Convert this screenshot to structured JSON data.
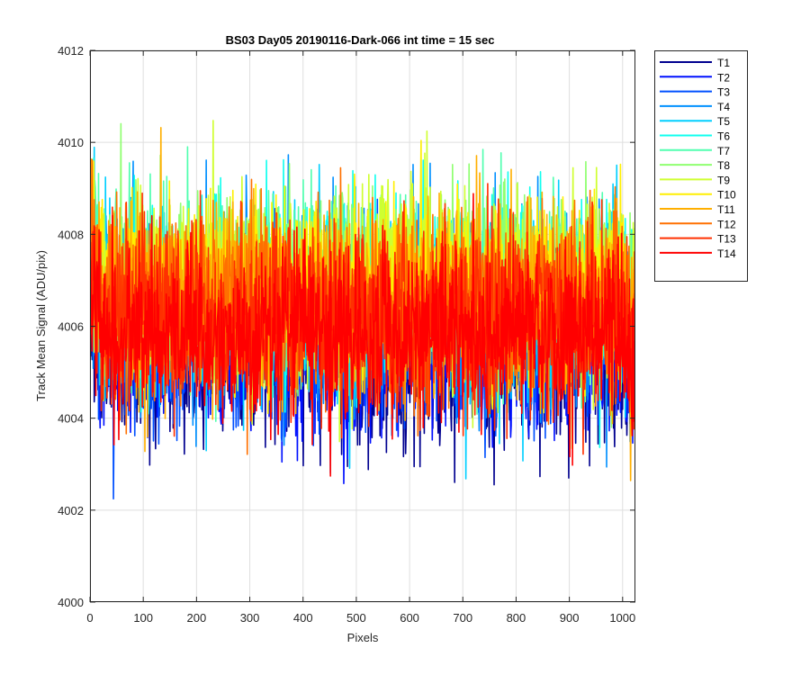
{
  "chart_data": {
    "type": "line",
    "title": "BS03 Day05 20190116-Dark-066 int time = 15 sec",
    "xlabel": "Pixels",
    "ylabel": "Track Mean Signal (ADU/pix)",
    "xlim": [
      0,
      1024
    ],
    "ylim": [
      4000,
      4012
    ],
    "xticks": [
      0,
      100,
      200,
      300,
      400,
      500,
      600,
      700,
      800,
      900,
      1000
    ],
    "yticks": [
      4000,
      4002,
      4004,
      4006,
      4008,
      4010,
      4012
    ],
    "grid": true,
    "legend_position": "outside-right-top",
    "series": [
      {
        "name": "T1",
        "color": "#00008f",
        "mean": 4005.4,
        "noise": 0.95
      },
      {
        "name": "T2",
        "color": "#0010ff",
        "mean": 4005.6,
        "noise": 0.95
      },
      {
        "name": "T3",
        "color": "#0050ff",
        "mean": 4005.8,
        "noise": 0.95
      },
      {
        "name": "T4",
        "color": "#0090ff",
        "mean": 4006.3,
        "noise": 1.0
      },
      {
        "name": "T5",
        "color": "#00cfff",
        "mean": 4006.5,
        "noise": 1.0
      },
      {
        "name": "T6",
        "color": "#10ffef",
        "mean": 4006.7,
        "noise": 1.0
      },
      {
        "name": "T7",
        "color": "#50ffaf",
        "mean": 4006.8,
        "noise": 1.0
      },
      {
        "name": "T8",
        "color": "#8fff70",
        "mean": 4006.9,
        "noise": 1.0
      },
      {
        "name": "T9",
        "color": "#cfff30",
        "mean": 4006.9,
        "noise": 1.0
      },
      {
        "name": "T10",
        "color": "#ffef00",
        "mean": 4006.8,
        "noise": 1.0
      },
      {
        "name": "T11",
        "color": "#ffaf00",
        "mean": 4006.6,
        "noise": 1.0
      },
      {
        "name": "T12",
        "color": "#ff7000",
        "mean": 4006.4,
        "noise": 1.0
      },
      {
        "name": "T13",
        "color": "#ff3000",
        "mean": 4006.2,
        "noise": 1.0
      },
      {
        "name": "T14",
        "color": "#ff0000",
        "mean": 4005.9,
        "noise": 0.9
      }
    ],
    "samples_per_series": 1024
  }
}
